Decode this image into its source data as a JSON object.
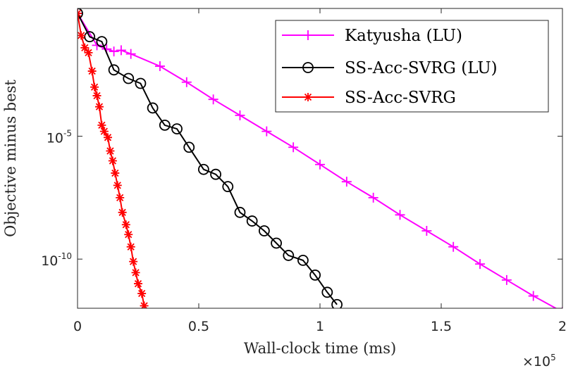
{
  "chart_data": {
    "type": "line",
    "title": "",
    "xlabel": "Wall-clock time (ms)",
    "ylabel": "Objective minus best",
    "x_exponent_label": "×10",
    "x_exponent_power": "5",
    "x_scale_factor": 100000,
    "xlim": [
      0,
      200000
    ],
    "ylim_log10": [
      -12,
      0.2
    ],
    "y_scale": "log",
    "x_ticks": [
      0,
      50000,
      100000,
      150000,
      200000
    ],
    "x_tick_labels": [
      "0",
      "0.5",
      "1",
      "1.5",
      "2"
    ],
    "y_ticks_log10": [
      -5,
      -10
    ],
    "y_tick_labels": [
      {
        "base": "10",
        "exp": "-5"
      },
      {
        "base": "10",
        "exp": "-10"
      }
    ],
    "grid": false,
    "legend_position": "top-right",
    "series": [
      {
        "name": "Katyusha (LU)",
        "color": "#ff00ff",
        "marker": "plus",
        "x": [
          0,
          8000,
          12000,
          15000,
          18000,
          22000,
          34000,
          45000,
          56000,
          67000,
          78000,
          89000,
          100000,
          111000,
          122000,
          133000,
          144000,
          155000,
          166000,
          177000,
          188000,
          200000
        ],
        "y_log10": [
          0,
          -1.3,
          -1.45,
          -1.55,
          -1.5,
          -1.65,
          -2.15,
          -2.8,
          -3.5,
          -4.15,
          -4.8,
          -5.45,
          -6.15,
          -6.85,
          -7.5,
          -8.2,
          -8.85,
          -9.5,
          -10.2,
          -10.85,
          -11.5,
          -12.15
        ]
      },
      {
        "name": "SS-Acc-SVRG (LU)",
        "color": "#000000",
        "marker": "circle",
        "x": [
          0,
          5000,
          10000,
          15000,
          21000,
          26000,
          31000,
          36000,
          41000,
          46000,
          52000,
          57000,
          62000,
          67000,
          72000,
          77000,
          82000,
          87000,
          93000,
          98000,
          103000,
          107000
        ],
        "y_log10": [
          0,
          -0.95,
          -1.15,
          -2.3,
          -2.65,
          -2.85,
          -3.85,
          -4.55,
          -4.7,
          -5.45,
          -6.35,
          -6.55,
          -7.05,
          -8.1,
          -8.45,
          -8.85,
          -9.35,
          -9.85,
          -10.05,
          -10.65,
          -11.35,
          -11.85
        ]
      },
      {
        "name": "SS-Acc-SVRG",
        "color": "#ff0000",
        "marker": "star",
        "x": [
          0,
          1500,
          3000,
          4500,
          6000,
          7000,
          8000,
          9000,
          10000,
          11000,
          12500,
          13500,
          14500,
          15500,
          16500,
          17500,
          18500,
          20000,
          21000,
          22000,
          23000,
          24000,
          25000,
          26500,
          27500
        ],
        "y_log10": [
          0,
          -0.9,
          -1.4,
          -1.6,
          -2.35,
          -3.0,
          -3.35,
          -3.8,
          -4.55,
          -4.8,
          -5.05,
          -5.6,
          -6.0,
          -6.5,
          -7.0,
          -7.5,
          -8.1,
          -8.6,
          -9.0,
          -9.5,
          -10.1,
          -10.55,
          -11.0,
          -11.4,
          -11.9
        ]
      }
    ]
  }
}
